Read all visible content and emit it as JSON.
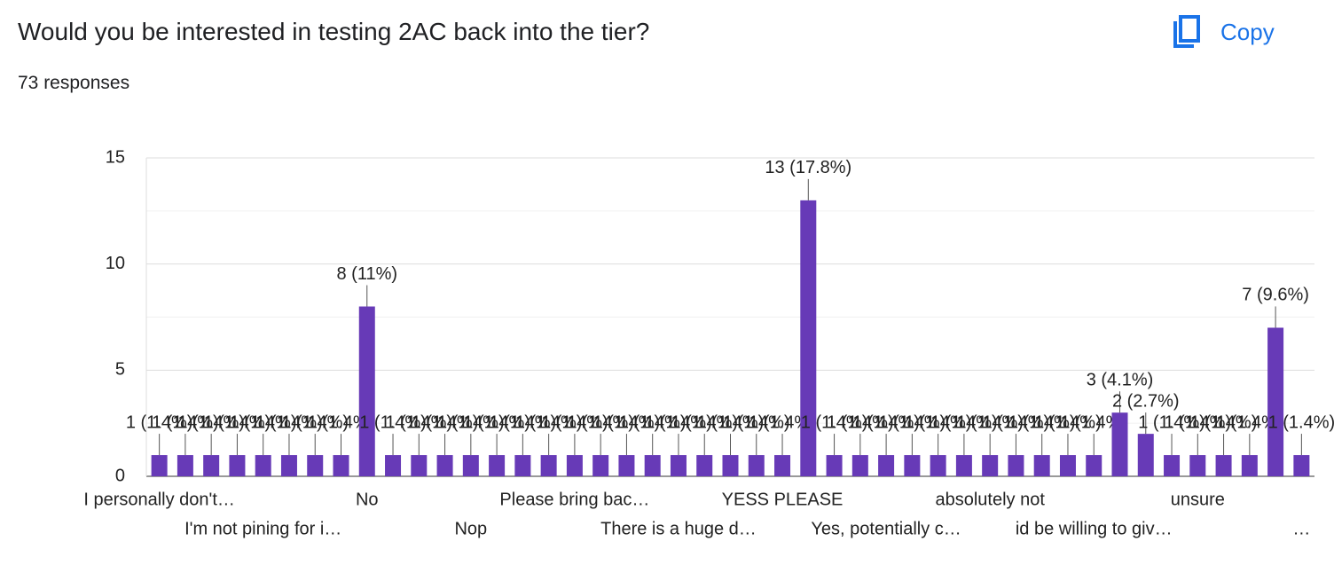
{
  "header": {
    "title": "Would you be interested in testing 2AC back into the tier?",
    "subtitle": "73 responses",
    "copy_button": "Copy"
  },
  "chart_data": {
    "type": "bar",
    "color": "#673ab7",
    "categories": [
      "I personally don't…",
      null,
      null,
      null,
      "I'm not pining for i…",
      null,
      null,
      null,
      "No",
      null,
      null,
      null,
      "Nop",
      null,
      null,
      null,
      "Please bring bac…",
      null,
      null,
      null,
      "There is a huge d…",
      null,
      null,
      null,
      "YESS PLEASE",
      null,
      null,
      null,
      "Yes, potentially c…",
      null,
      null,
      null,
      "absolutely not",
      null,
      null,
      null,
      "id be willing to giv…",
      null,
      null,
      null,
      "unsure",
      null,
      null,
      null,
      "…"
    ],
    "values": [
      1,
      1,
      1,
      1,
      1,
      1,
      1,
      1,
      8,
      1,
      1,
      1,
      1,
      1,
      1,
      1,
      1,
      1,
      1,
      1,
      1,
      1,
      1,
      1,
      1,
      13,
      1,
      1,
      1,
      1,
      1,
      1,
      1,
      1,
      1,
      1,
      1,
      3,
      2,
      1,
      1,
      1,
      1,
      7,
      1
    ],
    "value_labels": [
      "1 (1.4%)",
      "1 (1.4%)",
      "1 (1.4%)",
      "1 (1.4%)",
      "1 (1.4%)",
      "1 (1.4%)",
      "1 (1.4%)",
      "1 (1.4%)",
      "8 (11%)",
      "1 (1.4%)",
      "1 (1.4%)",
      "1 (1.4%)",
      "1 (1.4%)",
      "1 (1.4%)",
      "1 (1.4%)",
      "1 (1.4%)",
      "1 (1.4%)",
      "1 (1.4%)",
      "1 (1.4%)",
      "1 (1.4%)",
      "1 (1.4%)",
      "1 (1.4%)",
      "1 (1.4%)",
      "1 (1.4%)",
      "1 (1.4%)",
      "13 (17.8%)",
      "1 (1.4%)",
      "1 (1.4%)",
      "1 (1.4%)",
      "1 (1.4%)",
      "1 (1.4%)",
      "1 (1.4%)",
      "1 (1.4%)",
      "1 (1.4%)",
      "1 (1.4%)",
      "1 (1.4%)",
      "1 (1.4%)",
      "3 (4.1%)",
      "2 (2.7%)",
      "1 (1.4%)",
      "1 (1.4%)",
      "1 (1.4%)",
      "1 (1.4%)",
      "7 (9.6%)",
      "1 (1.4%)"
    ],
    "ylim": [
      0,
      15
    ],
    "yticks": [
      0,
      5,
      10,
      15
    ],
    "grid": true
  }
}
